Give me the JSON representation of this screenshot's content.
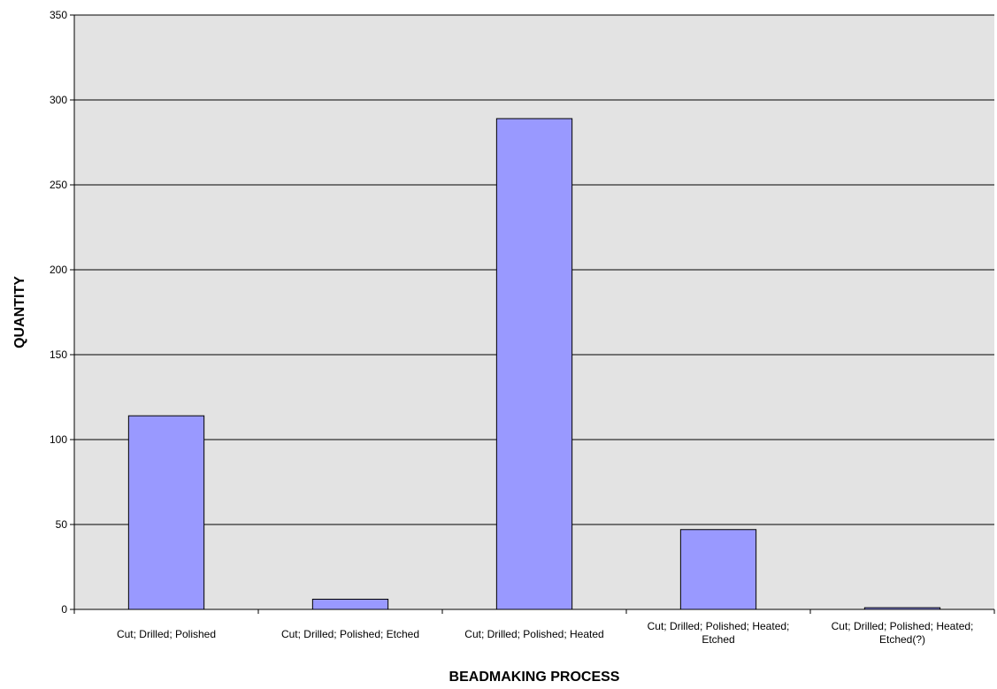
{
  "chart_data": {
    "type": "bar",
    "title": "",
    "xlabel": "BEADMAKING PROCESS",
    "ylabel": "QUANTITY",
    "ylim": [
      0,
      350
    ],
    "yticks": [
      0,
      50,
      100,
      150,
      200,
      250,
      300,
      350
    ],
    "grid": true,
    "legend": "none",
    "categories": [
      [
        "Cut; Drilled; Polished"
      ],
      [
        "Cut; Drilled; Polished; Etched"
      ],
      [
        "Cut; Drilled; Polished; Heated"
      ],
      [
        "Cut; Drilled; Polished; Heated;",
        "Etched"
      ],
      [
        "Cut; Drilled; Polished; Heated;",
        "Etched(?)"
      ]
    ],
    "values": [
      114,
      6,
      289,
      47,
      1
    ],
    "colors": {
      "bar_fill": "#9999ff",
      "bar_stroke": "#000000",
      "plot_background": "#e3e3e3",
      "gridline": "#000000"
    }
  }
}
